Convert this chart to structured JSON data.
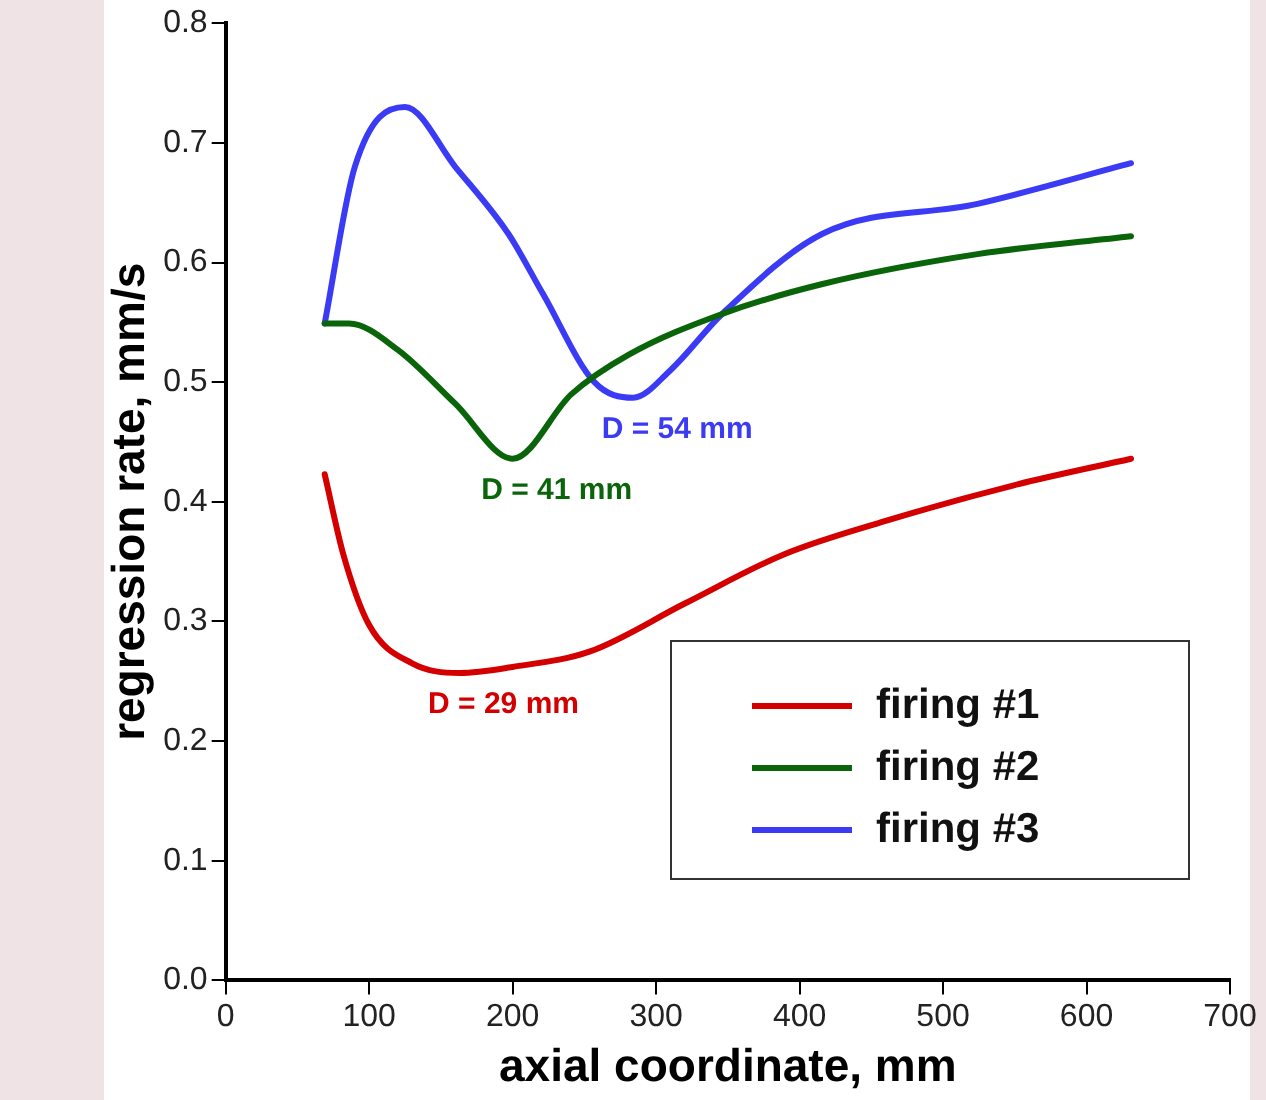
{
  "chart_data": {
    "type": "line",
    "xlabel": "axial coordinate, mm",
    "ylabel": "regression rate, mm/s",
    "xlim": [
      0,
      700
    ],
    "xticks": [
      0,
      100,
      200,
      300,
      400,
      500,
      600,
      700
    ],
    "ylim": [
      0,
      0.8
    ],
    "yticks": [
      {
        "value": 0,
        "label": "0.0"
      },
      0.1,
      0.2,
      0.3,
      0.4,
      0.5,
      0.6,
      0.7,
      0.8
    ],
    "grid": false,
    "legend": "bottom right",
    "marker": "none",
    "line_style": "solid",
    "series": [
      {
        "name": "firing #1",
        "color": "#d40000",
        "x": [
          69,
          82,
          100,
          130,
          163,
          200,
          254,
          320,
          389,
          460,
          550,
          631
        ],
        "values": [
          0.423,
          0.356,
          0.297,
          0.265,
          0.257,
          0.262,
          0.275,
          0.315,
          0.356,
          0.384,
          0.414,
          0.436
        ]
      },
      {
        "name": "firing #2",
        "color": "#0a640a",
        "x": [
          69,
          86,
          120,
          160,
          200,
          241,
          281,
          346,
          416,
          524,
          631
        ],
        "values": [
          0.549,
          0.549,
          0.527,
          0.482,
          0.436,
          0.49,
          0.523,
          0.557,
          0.582,
          0.607,
          0.622
        ]
      },
      {
        "name": "firing #3",
        "color": "#3b3bf5",
        "x": [
          69,
          90,
          125,
          160,
          197,
          221,
          257,
          284,
          310,
          346,
          416,
          524,
          631
        ],
        "values": [
          0.549,
          0.68,
          0.73,
          0.68,
          0.624,
          0.574,
          0.5,
          0.487,
          0.51,
          0.557,
          0.624,
          0.649,
          0.683
        ]
      }
    ],
    "annotations": [
      {
        "text": "D = 29 mm",
        "x": 163,
        "y": 0.257
      },
      {
        "text": "D = 41 mm",
        "x": 200,
        "y": 0.436
      },
      {
        "text": "D = 54 mm",
        "x": 284,
        "y": 0.487
      }
    ]
  }
}
